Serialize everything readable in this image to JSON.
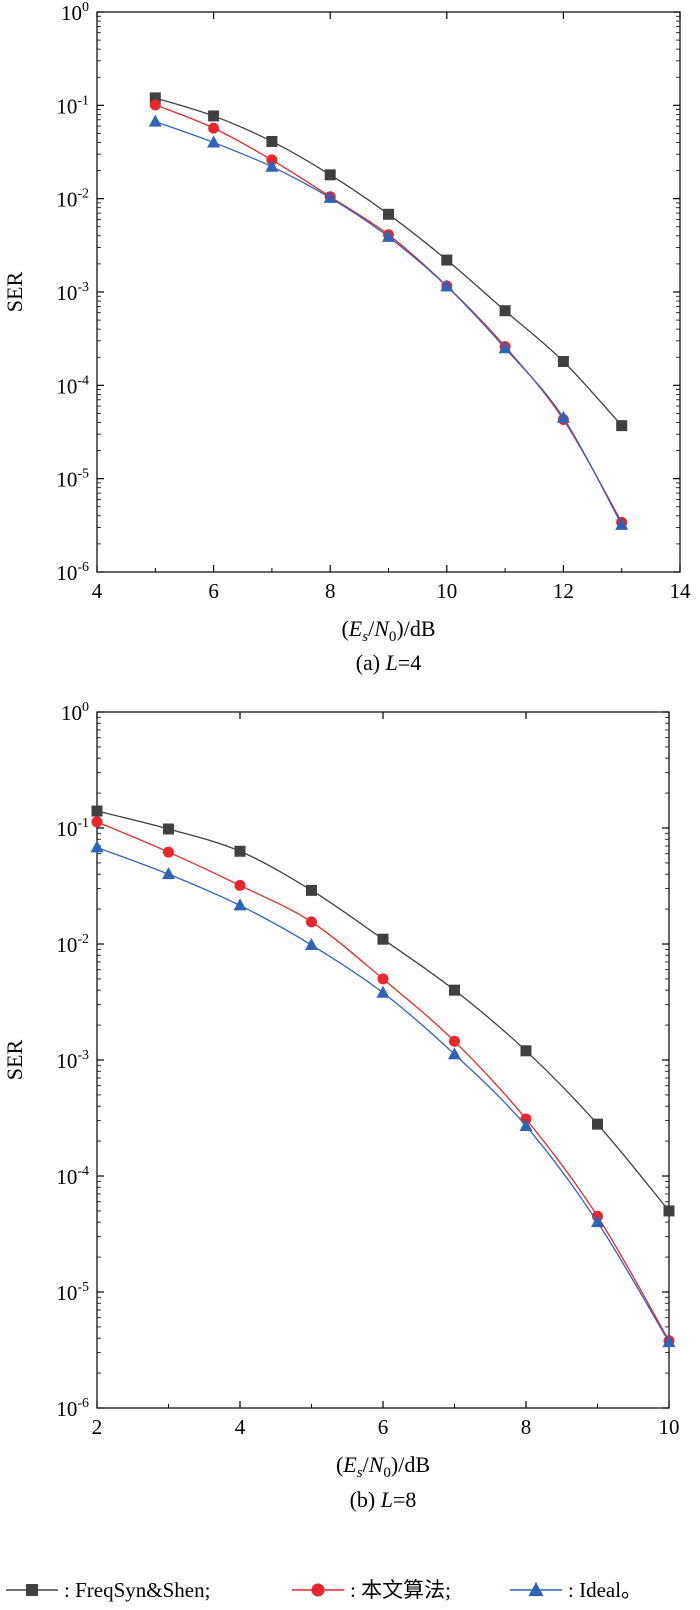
{
  "chart_data": [
    {
      "type": "line",
      "caption": "(a) L=4",
      "caption_parts": [
        "(a) ",
        "L",
        "=4"
      ],
      "xlabel": "(Es/N0)/dB",
      "ylabel": "SER",
      "xlim": [
        4,
        14
      ],
      "ylim": [
        1e-06,
        1
      ],
      "yscale": "log",
      "xticks": [
        "4",
        "6",
        "8",
        "10",
        "12",
        "14"
      ],
      "yticks": [
        "10^0",
        "10^-1",
        "10^-2",
        "10^-3",
        "10^-4",
        "10^-5",
        "10^-6"
      ],
      "grid": false,
      "x": [
        5,
        6,
        7,
        8,
        9,
        10,
        11,
        12,
        13
      ],
      "series": [
        {
          "name": "FreqSyn&Shen",
          "values": [
            0.12,
            0.077,
            0.041,
            0.018,
            0.0068,
            0.0022,
            0.00063,
            0.00018,
            3.7e-05
          ]
        },
        {
          "name": "本文算法",
          "values": [
            0.101,
            0.057,
            0.026,
            0.0105,
            0.0041,
            0.00116,
            0.00026,
            4.3e-05,
            3.4e-06
          ]
        },
        {
          "name": "Ideal",
          "values": [
            0.067,
            0.04,
            0.022,
            0.0102,
            0.0039,
            0.00115,
            0.00025,
            4.5e-05,
            3.2e-06
          ]
        }
      ]
    },
    {
      "type": "line",
      "caption": "(b) L=8",
      "caption_parts": [
        "(b) ",
        "L",
        "=8"
      ],
      "xlabel": "(Es/N0)/dB",
      "ylabel": "SER",
      "xlim": [
        2,
        10
      ],
      "ylim": [
        1e-06,
        1
      ],
      "yscale": "log",
      "xticks": [
        "2",
        "4",
        "6",
        "8",
        "10"
      ],
      "yticks": [
        "10^0",
        "10^-1",
        "10^-2",
        "10^-3",
        "10^-4",
        "10^-5",
        "10^-6"
      ],
      "grid": false,
      "x": [
        2,
        3,
        4,
        5,
        6,
        7,
        8,
        9,
        10
      ],
      "series": [
        {
          "name": "FreqSyn&Shen",
          "values": [
            0.14,
            0.098,
            0.063,
            0.029,
            0.011,
            0.004,
            0.0012,
            0.00028,
            5e-05
          ]
        },
        {
          "name": "本文算法",
          "values": [
            0.113,
            0.062,
            0.032,
            0.0155,
            0.005,
            0.00145,
            0.00031,
            4.5e-05,
            3.8e-06
          ]
        },
        {
          "name": "Ideal",
          "values": [
            0.068,
            0.04,
            0.0215,
            0.0098,
            0.0038,
            0.00112,
            0.00027,
            4e-05,
            3.7e-06
          ]
        }
      ]
    }
  ],
  "legend": {
    "items": [
      {
        "name": "FreqSyn&Shen",
        "text": ": FreqSyn&Shen;",
        "marker": "square",
        "color": "#404040"
      },
      {
        "name": "本文算法",
        "text": ": 本文算法;",
        "marker": "circle",
        "color": "#e8262b"
      },
      {
        "name": "Ideal",
        "text": ": Ideal。",
        "marker": "triangle",
        "color": "#2f63b9"
      }
    ]
  },
  "colors": {
    "FreqSyn&Shen": "#404040",
    "本文算法": "#e8262b",
    "Ideal": "#2f63b9",
    "axis": "#000000"
  }
}
